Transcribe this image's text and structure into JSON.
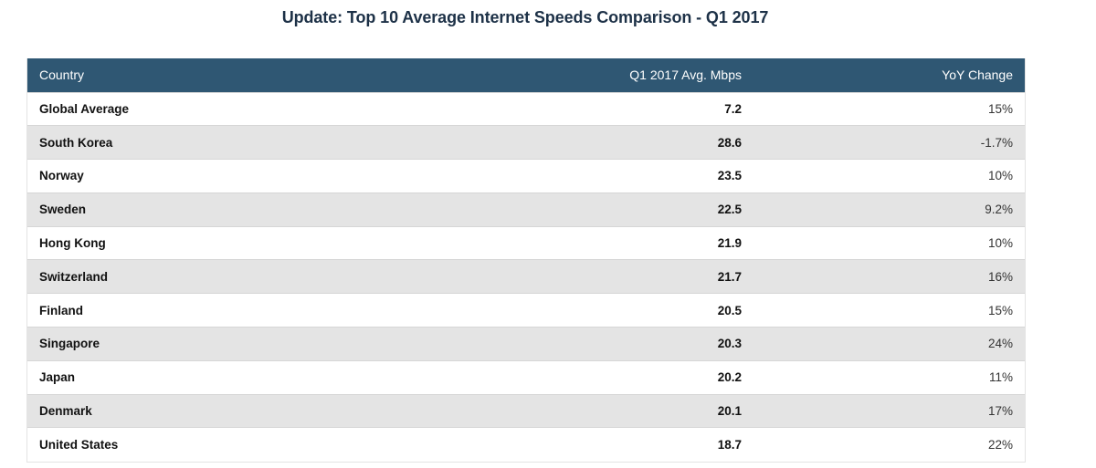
{
  "chart_data": {
    "type": "table",
    "title": "Update: Top 10 Average Internet Speeds Comparison - Q1 2017",
    "columns": [
      "Country",
      "Q1 2017 Avg. Mbps",
      "YoY Change"
    ],
    "rows": [
      {
        "country": "Global Average",
        "speed": "7.2",
        "yoy": "15%"
      },
      {
        "country": "South Korea",
        "speed": "28.6",
        "yoy": "-1.7%"
      },
      {
        "country": "Norway",
        "speed": "23.5",
        "yoy": "10%"
      },
      {
        "country": "Sweden",
        "speed": "22.5",
        "yoy": "9.2%"
      },
      {
        "country": "Hong Kong",
        "speed": "21.9",
        "yoy": "10%"
      },
      {
        "country": "Switzerland",
        "speed": "21.7",
        "yoy": "16%"
      },
      {
        "country": "Finland",
        "speed": "20.5",
        "yoy": "15%"
      },
      {
        "country": "Singapore",
        "speed": "20.3",
        "yoy": "24%"
      },
      {
        "country": "Japan",
        "speed": "20.2",
        "yoy": "11%"
      },
      {
        "country": "Denmark",
        "speed": "20.1",
        "yoy": "17%"
      },
      {
        "country": "United States",
        "speed": "18.7",
        "yoy": "22%"
      }
    ],
    "colors": {
      "header_bg": "#2f5773",
      "title": "#1d3147",
      "stripe": "#e4e4e4"
    }
  }
}
